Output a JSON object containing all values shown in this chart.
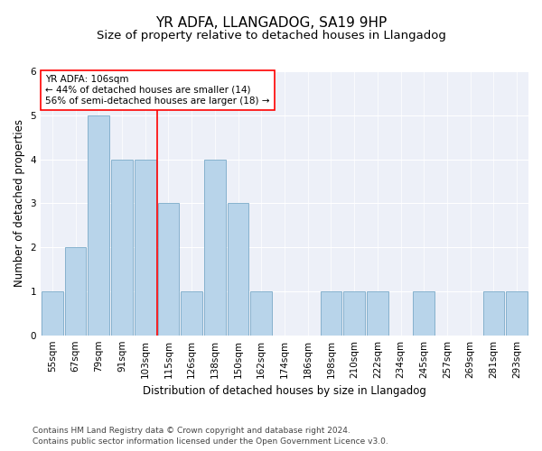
{
  "title": "YR ADFA, LLANGADOG, SA19 9HP",
  "subtitle": "Size of property relative to detached houses in Llangadog",
  "xlabel": "Distribution of detached houses by size in Llangadog",
  "ylabel": "Number of detached properties",
  "categories": [
    "55sqm",
    "67sqm",
    "79sqm",
    "91sqm",
    "103sqm",
    "115sqm",
    "126sqm",
    "138sqm",
    "150sqm",
    "162sqm",
    "174sqm",
    "186sqm",
    "198sqm",
    "210sqm",
    "222sqm",
    "234sqm",
    "245sqm",
    "257sqm",
    "269sqm",
    "281sqm",
    "293sqm"
  ],
  "values": [
    1,
    2,
    5,
    4,
    4,
    3,
    1,
    4,
    3,
    1,
    0,
    0,
    1,
    1,
    1,
    0,
    1,
    0,
    0,
    1,
    1
  ],
  "bar_color": "#b8d4ea",
  "bar_edge_color": "#7aaac8",
  "ylim": [
    0,
    6
  ],
  "yticks": [
    0,
    1,
    2,
    3,
    4,
    5,
    6
  ],
  "vline_position": 4.5,
  "property_label": "YR ADFA: 106sqm",
  "annotation_line1": "← 44% of detached houses are smaller (14)",
  "annotation_line2": "56% of semi-detached houses are larger (18) →",
  "footer_line1": "Contains HM Land Registry data © Crown copyright and database right 2024.",
  "footer_line2": "Contains public sector information licensed under the Open Government Licence v3.0.",
  "plot_bg_color": "#edf0f8",
  "title_fontsize": 11,
  "subtitle_fontsize": 9.5,
  "axis_label_fontsize": 8.5,
  "tick_fontsize": 7.5,
  "annotation_fontsize": 7.5,
  "footer_fontsize": 6.5
}
